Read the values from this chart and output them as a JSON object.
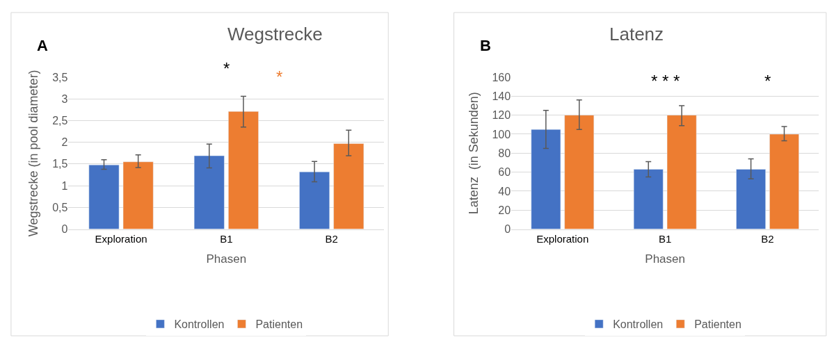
{
  "chart_data": [
    {
      "type": "bar",
      "title": "Wegstrecke",
      "xlabel": "Phasen",
      "ylabel": "Wegstrecke (in pool diameter)",
      "categories": [
        "Exploration",
        "B1",
        "B2"
      ],
      "series": [
        {
          "name": "Kontrollen",
          "color": "#4472c4",
          "values": [
            1.48,
            1.69,
            1.32
          ],
          "errors": [
            [
              1.38,
              1.6
            ],
            [
              1.41,
              1.96
            ],
            [
              1.09,
              1.56
            ]
          ]
        },
        {
          "name": "Patienten",
          "color": "#ed7d31",
          "values": [
            1.55,
            2.71,
            1.97
          ],
          "errors": [
            [
              1.42,
              1.71
            ],
            [
              2.35,
              3.06
            ],
            [
              1.69,
              2.28
            ]
          ]
        }
      ],
      "ylim": [
        0,
        3.5
      ],
      "yticks": [
        0,
        {
          "value": 0.5,
          "label": "0,5"
        },
        1,
        {
          "value": 1.5,
          "label": "1,5"
        },
        2,
        {
          "value": 2.5,
          "label": "2,5"
        },
        3,
        {
          "value": 3.5,
          "label": "3,5"
        }
      ],
      "grid": "y",
      "legend": "bottom",
      "annotations": [
        "A",
        "*",
        "*"
      ]
    },
    {
      "type": "bar",
      "title": "Latenz",
      "xlabel": "Phasen",
      "ylabel": "Latenz  (in Sekunden)",
      "categories": [
        "Exploration",
        "B1",
        "B2"
      ],
      "series": [
        {
          "name": "Kontrollen",
          "color": "#4472c4",
          "values": [
            105,
            63,
            63
          ],
          "errors": [
            [
              85,
              125
            ],
            [
              55,
              71
            ],
            [
              53,
              74
            ]
          ]
        },
        {
          "name": "Patienten",
          "color": "#ed7d31",
          "values": [
            120,
            120,
            100
          ],
          "errors": [
            [
              105,
              136
            ],
            [
              109,
              130
            ],
            [
              93,
              108
            ]
          ]
        }
      ],
      "ylim": [
        0,
        160
      ],
      "yticks": [
        0,
        20,
        40,
        60,
        80,
        100,
        120,
        140,
        160
      ],
      "grid": "y",
      "legend": "bottom",
      "annotations": [
        "B",
        "* * *",
        "*"
      ]
    }
  ]
}
